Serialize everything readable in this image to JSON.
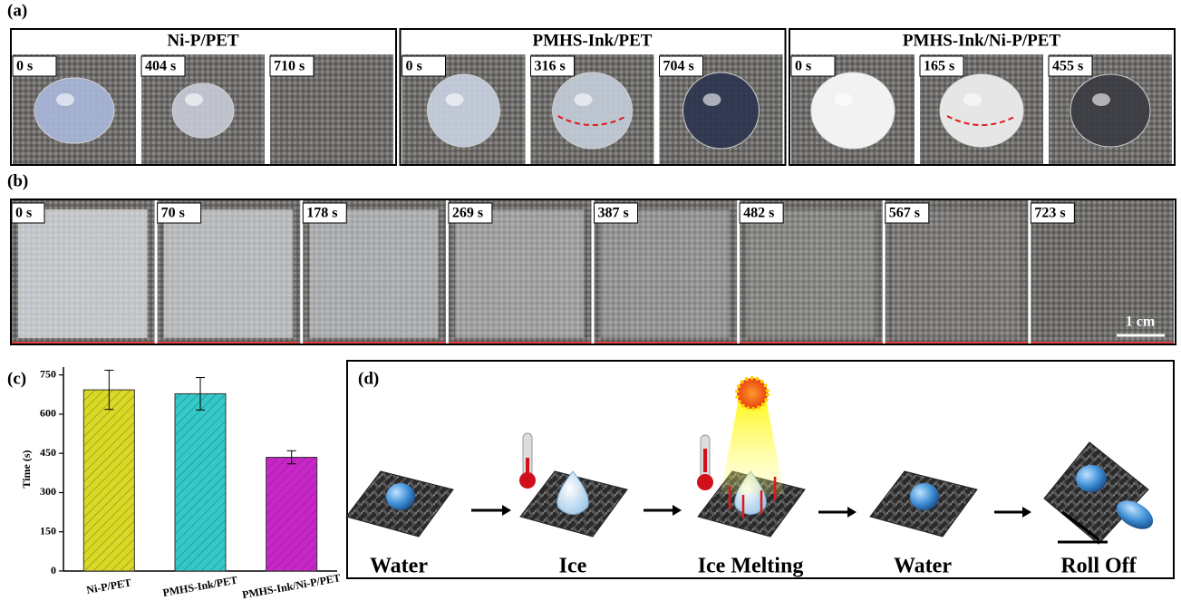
{
  "panel_labels": [
    "(a)",
    "(b)",
    "(c)",
    "(d)"
  ],
  "panel_a": {
    "groups": [
      {
        "title": "Ni-P/PET",
        "times": [
          "0 s",
          "404 s",
          "710 s"
        ]
      },
      {
        "title": "PMHS-Ink/PET",
        "times": [
          "0 s",
          "316 s",
          "704 s"
        ]
      },
      {
        "title": "PMHS-Ink/Ni-P/PET",
        "times": [
          "0 s",
          "165 s",
          "455 s"
        ]
      }
    ]
  },
  "panel_b": {
    "times": [
      "0 s",
      "70 s",
      "178 s",
      "269 s",
      "387 s",
      "482 s",
      "567 s",
      "723 s"
    ],
    "scale_bar": "1 cm"
  },
  "chart_data": {
    "type": "bar",
    "y_label": "Time (s)",
    "categories": [
      "Ni-P/PET",
      "PMHS-Ink/PET",
      "PMHS-Ink/Ni-P/PET"
    ],
    "values": [
      693,
      678,
      435
    ],
    "errors": [
      75,
      62,
      25
    ],
    "colors": [
      "#d9d924",
      "#33c9c9",
      "#c925c9"
    ],
    "ylim": [
      0,
      780
    ],
    "yticks": [
      0,
      150,
      300,
      450,
      600,
      750
    ]
  },
  "panel_d": {
    "steps": [
      "Water",
      "Ice",
      "Ice Melting",
      "Water",
      "Roll Off"
    ]
  }
}
